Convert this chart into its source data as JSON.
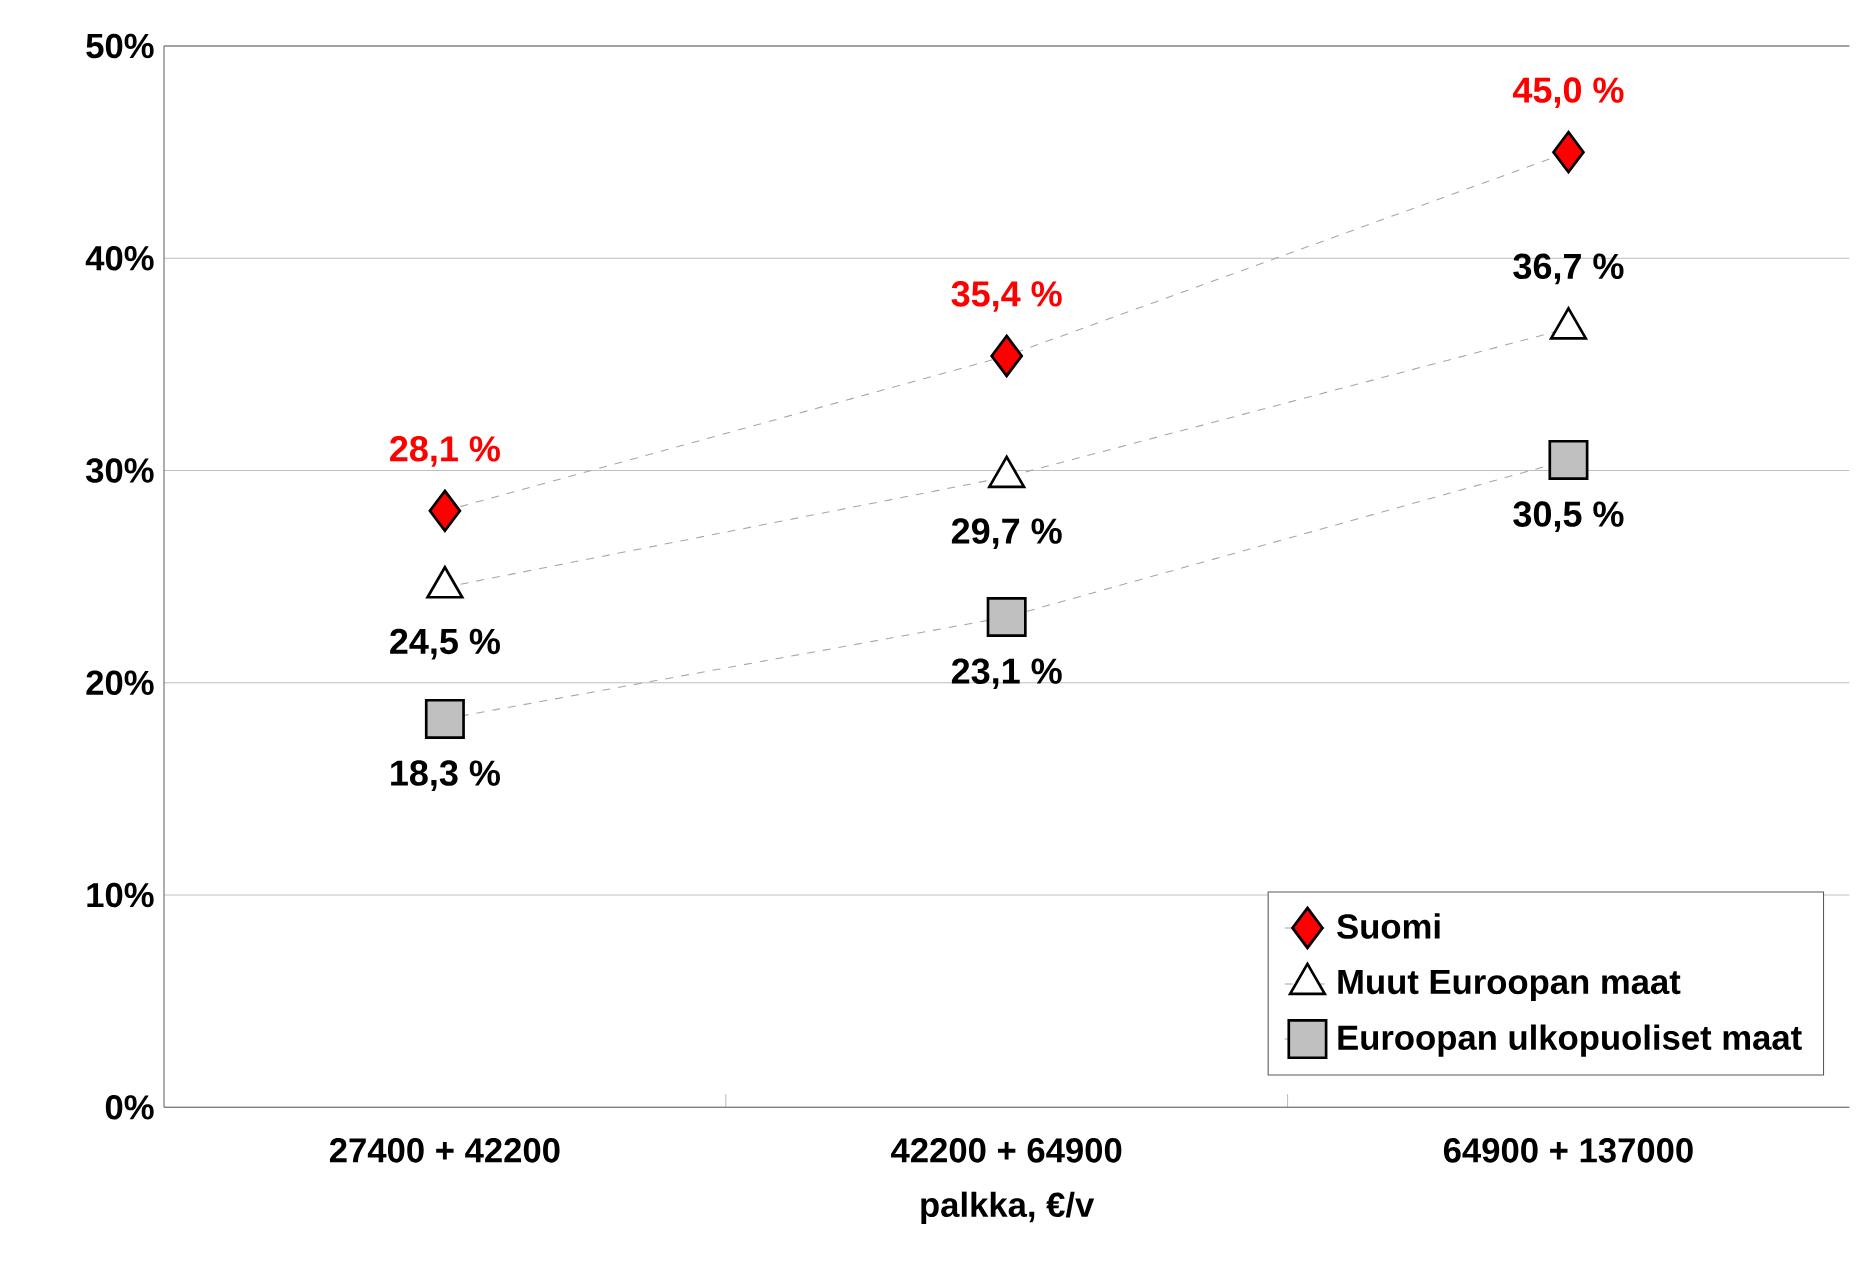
{
  "chart_data": {
    "type": "line",
    "xlabel": "palkka, €/v",
    "categories": [
      "27400 + 42200",
      "42200 + 64900",
      "64900 + 137000"
    ],
    "ylim": [
      0,
      50
    ],
    "yticks": [
      {
        "value": 0,
        "label": "0%"
      },
      {
        "value": 10,
        "label": "10%"
      },
      {
        "value": 20,
        "label": "20%"
      },
      {
        "value": 30,
        "label": "30%"
      },
      {
        "value": 40,
        "label": "40%"
      },
      {
        "value": 50,
        "label": "50%"
      }
    ],
    "grid": "y",
    "legend": "bottom right",
    "line_style": "dashed",
    "series": [
      {
        "name": "Suomi",
        "color": "#ff0000",
        "marker": "diamond",
        "values": [
          28.1,
          35.4,
          45.0
        ],
        "value_labels": [
          "28,1 %",
          "35,4 %",
          "45,0 %"
        ]
      },
      {
        "name": "Muut Euroopan maat",
        "color": "#ffffff",
        "marker": "triangle",
        "values": [
          24.5,
          29.7,
          36.7
        ],
        "value_labels": [
          "24,5 %",
          "29,7 %",
          "36,7 %"
        ]
      },
      {
        "name": "Euroopan ulkopuoliset maat",
        "color": "#c0c0c0",
        "marker": "square",
        "values": [
          18.3,
          23.1,
          30.5
        ],
        "value_labels": [
          "18,3 %",
          "23,1 %",
          "30,5 %"
        ]
      }
    ]
  }
}
